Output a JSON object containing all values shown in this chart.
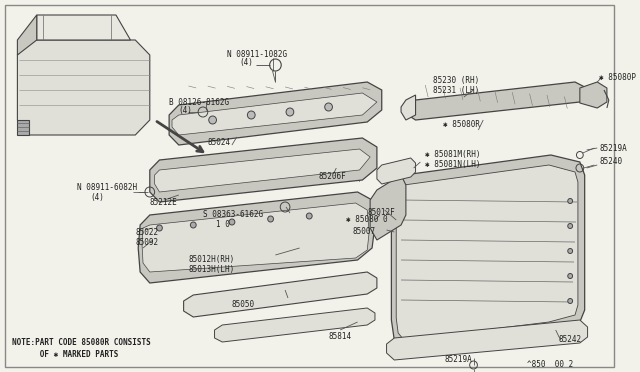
{
  "bg_color": "#f2f2ea",
  "line_color": "#444444",
  "fill_color": "#c8c8c0",
  "fill_light": "#e0e0d8",
  "note_line1": "NOTE:PART CODE 85080R CONSISTS",
  "note_line2": "      OF ✱ MARKED PARTS",
  "page_ref": "^850  00 2"
}
